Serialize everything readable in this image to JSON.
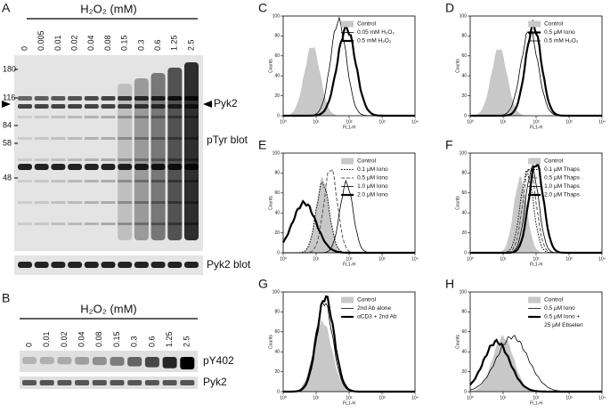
{
  "panel_a": {
    "letter": "A",
    "title": "H₂O₂ (mM)",
    "lanes": [
      "0",
      "0.005",
      "0.01",
      "0.02",
      "0.04",
      "0.08",
      "0.15",
      "0.3",
      "0.6",
      "1.25",
      "2.5"
    ],
    "markers": [
      "180",
      "116",
      "84",
      "58",
      "48"
    ],
    "band_label": "Pyk2",
    "blot_label": "pTyr blot",
    "loading_label": "Pyk2 blot"
  },
  "panel_b": {
    "letter": "B",
    "title": "H₂O₂ (mM)",
    "lanes": [
      "0",
      "0.01",
      "0.02",
      "0.04",
      "0.08",
      "0.15",
      "0.3",
      "0.6",
      "1.25",
      "2.5"
    ],
    "labels": [
      "pY402",
      "Pyk2"
    ]
  },
  "axes": {
    "y_label": "Counts",
    "y_ticks": [
      "0",
      "20",
      "40",
      "60",
      "80",
      "100"
    ],
    "x_label": "FL1-H",
    "x_ticks": [
      "10⁰",
      "10¹",
      "10²",
      "10³",
      "10⁴"
    ]
  },
  "histograms": [
    {
      "letter": "C",
      "legend": [
        "Control",
        "0.05 mM H₂O₂",
        "0.5 mM H₂O₂"
      ]
    },
    {
      "letter": "D",
      "legend": [
        "Control",
        "0.5 μM Iono",
        "0.5 mM H₂O₂"
      ]
    },
    {
      "letter": "E",
      "legend": [
        "Control",
        "0.1 μM Iono",
        "0.5 μM Iono",
        "1.0 μM Iono",
        "2.0 μM Iono"
      ]
    },
    {
      "letter": "F",
      "legend": [
        "Control",
        "0.1 μM Thaps",
        "0.5 μM Thaps",
        "1.0 μM Thaps",
        "2.0 μM Thaps"
      ]
    },
    {
      "letter": "G",
      "legend": [
        "Control",
        "2nd Ab alone",
        "αCD3 + 2nd Ab"
      ]
    },
    {
      "letter": "H",
      "legend": [
        "Control",
        "0.5 μM Iono",
        "0.5 μM Iono +",
        "25 μM Ebselen"
      ]
    }
  ]
}
